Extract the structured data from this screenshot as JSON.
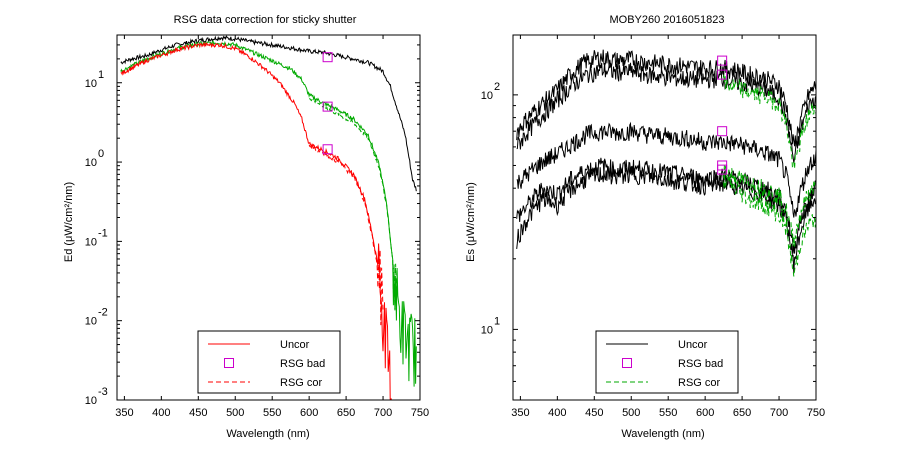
{
  "chart_data": [
    {
      "type": "line",
      "title": "RSG data correction for sticky shutter",
      "xlabel": "Wavelength (nm)",
      "ylabel": "Ed (μW/cm²/nm)",
      "xlim": [
        340,
        750
      ],
      "ylim": [
        0.001,
        40
      ],
      "yscale": "log",
      "xticks": [
        350,
        400,
        450,
        500,
        550,
        600,
        650,
        700,
        750
      ],
      "yticks": [
        {
          "base": "10",
          "exp": "1",
          "value": 10
        },
        {
          "base": "10",
          "exp": "0",
          "value": 1
        },
        {
          "base": "10",
          "exp": "-1",
          "value": 0.1
        },
        {
          "base": "10",
          "exp": "-2",
          "value": 0.01
        },
        {
          "base": "10",
          "exp": "-3",
          "value": 0.001
        }
      ],
      "legend": {
        "position": "bottom-center",
        "entries": [
          {
            "label": "Uncor",
            "color": "#ff0000",
            "style": "solid"
          },
          {
            "label": "RSG bad",
            "color": "#cc00cc",
            "style": "square"
          },
          {
            "label": "RSG cor",
            "color": "#ff0000",
            "style": "dashed"
          }
        ]
      },
      "series": [
        {
          "color": "#000000",
          "style": "solid",
          "x": [
            345,
            360,
            380,
            400,
            420,
            450,
            480,
            500,
            520,
            550,
            580,
            600,
            620,
            640,
            660,
            680,
            700,
            710,
            720,
            730,
            740,
            745
          ],
          "y": [
            18,
            20,
            22,
            26,
            30,
            34,
            37,
            36,
            33,
            30,
            27,
            25,
            24,
            22,
            20,
            18,
            14,
            9,
            4.5,
            2.2,
            0.6,
            0.45
          ]
        },
        {
          "color": "#00aa00",
          "style": "solid",
          "x": [
            345,
            380,
            420,
            450,
            480,
            500,
            520,
            550,
            575,
            590,
            600,
            620,
            640,
            660,
            680,
            695,
            705,
            712,
            718,
            725,
            735,
            745
          ],
          "y": [
            14,
            20,
            27,
            31,
            32,
            30,
            25,
            19,
            15,
            11,
            7,
            5.5,
            4.5,
            3.5,
            2.2,
            0.9,
            0.3,
            0.07,
            0.02,
            0.008,
            0.005,
            0.004
          ]
        },
        {
          "color": "#ff0000",
          "style": "solid",
          "x": [
            345,
            380,
            420,
            450,
            480,
            500,
            520,
            540,
            560,
            580,
            590,
            600,
            620,
            640,
            660,
            675,
            685,
            695,
            700,
            705,
            710,
            715
          ],
          "y": [
            13,
            19,
            26,
            30,
            30,
            27,
            21,
            15,
            10,
            5.5,
            3.5,
            1.7,
            1.4,
            1.1,
            0.7,
            0.35,
            0.13,
            0.04,
            0.012,
            0.004,
            0.0015,
            0.001
          ]
        },
        {
          "color": "#00aa00",
          "style": "dashed",
          "x": [
            600,
            620,
            640,
            660,
            680,
            695,
            705,
            712,
            718
          ],
          "y": [
            6.5,
            5.0,
            4.0,
            3.1,
            2.0,
            0.85,
            0.28,
            0.07,
            0.02
          ]
        },
        {
          "color": "#ff0000",
          "style": "dashed",
          "x": [
            600,
            620,
            640,
            660,
            675,
            685,
            695,
            700
          ],
          "y": [
            1.6,
            1.3,
            1.0,
            0.65,
            0.32,
            0.12,
            0.035,
            0.011
          ]
        }
      ],
      "markers": [
        {
          "x": 625,
          "y": 21
        },
        {
          "x": 625,
          "y": 5.0
        },
        {
          "x": 625,
          "y": 1.45
        }
      ]
    },
    {
      "type": "line",
      "title": "MOBY260  2016051823",
      "xlabel": "Wavelength (nm)",
      "ylabel": "Es (μW/cm²/nm)",
      "xlim": [
        340,
        750
      ],
      "ylim": [
        5,
        180
      ],
      "yscale": "log",
      "xticks": [
        350,
        400,
        450,
        500,
        550,
        600,
        650,
        700,
        750
      ],
      "yticks": [
        {
          "base": "10",
          "exp": "2",
          "value": 100
        },
        {
          "base": "10",
          "exp": "1",
          "value": 10
        }
      ],
      "legend": {
        "position": "bottom-center",
        "entries": [
          {
            "label": "Uncor",
            "color": "#000000",
            "style": "solid"
          },
          {
            "label": "RSG bad",
            "color": "#cc00cc",
            "style": "square"
          },
          {
            "label": "RSG cor",
            "color": "#00aa00",
            "style": "dashed"
          }
        ]
      },
      "series": [
        {
          "color": "#000000",
          "style": "solid",
          "x": [
            345,
            360,
            380,
            400,
            420,
            440,
            460,
            480,
            500,
            520,
            540,
            560,
            580,
            600,
            620,
            640,
            660,
            680,
            700,
            710,
            720,
            730,
            740,
            750
          ],
          "y": [
            70,
            80,
            92,
            105,
            125,
            140,
            145,
            140,
            142,
            138,
            136,
            134,
            132,
            130,
            130,
            128,
            122,
            118,
            110,
            90,
            60,
            80,
            100,
            110
          ]
        },
        {
          "color": "#000000",
          "style": "solid",
          "x": [
            345,
            360,
            380,
            400,
            420,
            440,
            460,
            480,
            500,
            520,
            540,
            560,
            580,
            600,
            620,
            640,
            660,
            680,
            700,
            710,
            720,
            730,
            740,
            750
          ],
          "y": [
            60,
            70,
            82,
            95,
            110,
            122,
            128,
            125,
            126,
            122,
            120,
            118,
            117,
            116,
            118,
            114,
            110,
            106,
            98,
            80,
            52,
            72,
            90,
            98
          ]
        },
        {
          "color": "#000000",
          "style": "solid",
          "x": [
            345,
            360,
            380,
            400,
            420,
            440,
            460,
            480,
            500,
            520,
            540,
            560,
            580,
            600,
            620,
            640,
            660,
            680,
            700,
            710,
            720,
            730,
            740,
            750
          ],
          "y": [
            42,
            46,
            52,
            56,
            62,
            68,
            70,
            69,
            70,
            68,
            67,
            66,
            65,
            63,
            63,
            62,
            60,
            57,
            53,
            45,
            30,
            40,
            50,
            55
          ]
        },
        {
          "color": "#000000",
          "style": "solid",
          "x": [
            345,
            360,
            380,
            400,
            420,
            440,
            460,
            480,
            500,
            520,
            540,
            560,
            580,
            600,
            620,
            640,
            660,
            680,
            700,
            710,
            720,
            730,
            740,
            750
          ],
          "y": [
            30,
            34,
            40,
            38,
            44,
            48,
            50,
            48,
            49,
            48,
            47,
            46,
            45,
            44,
            45,
            44,
            42,
            40,
            37,
            32,
            22,
            30,
            36,
            40
          ]
        },
        {
          "color": "#000000",
          "style": "solid",
          "x": [
            345,
            360,
            380,
            400,
            420,
            440,
            460,
            480,
            500,
            520,
            540,
            560,
            580,
            600,
            620,
            640,
            660,
            680,
            700,
            710,
            720,
            730,
            740,
            750
          ],
          "y": [
            24,
            30,
            36,
            34,
            40,
            44,
            46,
            45,
            46,
            45,
            44,
            43,
            42,
            41,
            42,
            41,
            39,
            37,
            34,
            29,
            19,
            27,
            33,
            37
          ]
        },
        {
          "color": "#00aa00",
          "style": "dashed",
          "x": [
            625,
            640,
            660,
            680,
            700,
            710,
            720,
            730,
            740,
            750
          ],
          "y": [
            112,
            108,
            103,
            99,
            92,
            75,
            48,
            66,
            82,
            90
          ]
        },
        {
          "color": "#00aa00",
          "style": "dashed",
          "x": [
            625,
            640,
            660,
            680,
            700,
            710,
            720,
            730,
            740,
            750
          ],
          "y": [
            48,
            45,
            42,
            40,
            37,
            32,
            24,
            32,
            38,
            41
          ]
        },
        {
          "color": "#00aa00",
          "style": "dashed",
          "x": [
            625,
            640,
            660,
            680,
            700,
            710,
            720,
            730,
            740,
            750
          ],
          "y": [
            44,
            40,
            36,
            34,
            31,
            27,
            17,
            24,
            28,
            30
          ]
        }
      ],
      "markers": [
        {
          "x": 623,
          "y": 140
        },
        {
          "x": 623,
          "y": 122
        },
        {
          "x": 623,
          "y": 70
        },
        {
          "x": 623,
          "y": 50
        },
        {
          "x": 623,
          "y": 48
        }
      ]
    }
  ]
}
